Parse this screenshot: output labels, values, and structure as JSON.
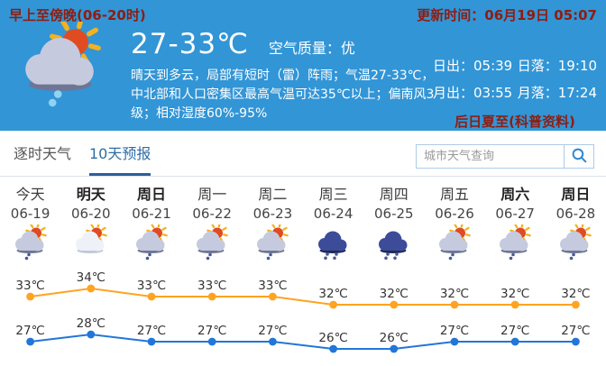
{
  "header": {
    "period_label": "早上至傍晚(06-20时)",
    "update_time": "更新时间：06月19日 05:07",
    "temp_range": "27-33℃",
    "air_quality": "空气质量：优",
    "description": "晴天到多云，局部有短时（雷）阵雨；气温27-33℃，中北部和人口密集区最高气温可达35℃以上；偏南风3级；相对湿度60%-95%",
    "sunrise": "日出：05:39",
    "sunset": "日落：19:10",
    "moonrise": "月出：03:55",
    "moonset": "月落：17:24",
    "solar_term": "后日夏至(科普资料)",
    "weather_icon": "sun-cloud-rain-icon"
  },
  "tabs": [
    {
      "label": "逐时天气",
      "active": false
    },
    {
      "label": "10天预报",
      "active": true
    }
  ],
  "search": {
    "placeholder": "城市天气查询",
    "icon": "search-icon"
  },
  "forecast": {
    "days": [
      {
        "name": "今天",
        "date": "06-19",
        "icon": "sun-cloud-rain-icon",
        "weekend": false
      },
      {
        "name": "明天",
        "date": "06-20",
        "icon": "sun-cloud-icon",
        "weekend": true
      },
      {
        "name": "周日",
        "date": "06-21",
        "icon": "sun-cloud-rain-icon",
        "weekend": true
      },
      {
        "name": "周一",
        "date": "06-22",
        "icon": "sun-cloud-rain-icon",
        "weekend": false
      },
      {
        "name": "周二",
        "date": "06-23",
        "icon": "sun-cloud-rain-icon",
        "weekend": false
      },
      {
        "name": "周三",
        "date": "06-24",
        "icon": "rain-icon",
        "weekend": false
      },
      {
        "name": "周四",
        "date": "06-25",
        "icon": "rain-icon",
        "weekend": false
      },
      {
        "name": "周五",
        "date": "06-26",
        "icon": "sun-cloud-rain-icon",
        "weekend": false
      },
      {
        "name": "周六",
        "date": "06-27",
        "icon": "sun-cloud-rain-icon",
        "weekend": true
      },
      {
        "name": "周日",
        "date": "06-28",
        "icon": "sun-cloud-rain-icon",
        "weekend": true
      }
    ]
  },
  "chart_data": {
    "type": "line",
    "categories": [
      "06-19",
      "06-20",
      "06-21",
      "06-22",
      "06-23",
      "06-24",
      "06-25",
      "06-26",
      "06-27",
      "06-28"
    ],
    "series": [
      {
        "name": "high",
        "values": [
          33,
          34,
          33,
          33,
          33,
          32,
          32,
          32,
          32,
          32
        ],
        "color": "#ffa321"
      },
      {
        "name": "low",
        "values": [
          27,
          28,
          27,
          27,
          27,
          26,
          26,
          27,
          27,
          27
        ],
        "color": "#2176d9"
      }
    ],
    "unit": "℃",
    "label_color": "#333333",
    "title": "",
    "xlabel": "",
    "ylabel": "",
    "grid": false,
    "legend": "none"
  },
  "colors": {
    "header_bg": "#3295d6",
    "accent_red": "#8e1d10",
    "tab_active": "#2e6da4",
    "tab_underline": "#2b5f9e",
    "line_high": "#ffa321",
    "line_low": "#2176d9"
  }
}
